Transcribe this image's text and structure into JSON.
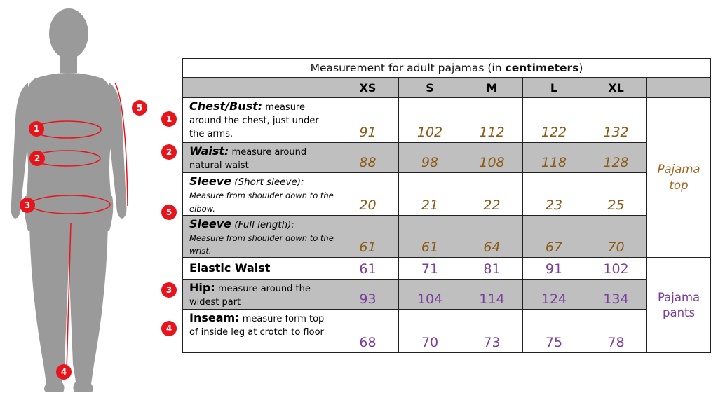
{
  "title": {
    "prefix": "Measurement for adult pajamas (in ",
    "bold": "centimeters",
    "suffix": ")"
  },
  "sizes": [
    "XS",
    "S",
    "M",
    "L",
    "XL"
  ],
  "colors": {
    "marker": "#e8141c",
    "top_values": "#8a5a16",
    "pants_values": "#7a3d9c",
    "shaded_row": "#bfbfbf",
    "silhouette": "#9a9a9a"
  },
  "markers": {
    "m1": "1",
    "m2": "2",
    "m3": "3",
    "m4": "4",
    "m5": "5"
  },
  "rows": {
    "chest": {
      "name": "Chest/Bust:",
      "desc": " measure around the chest, just under the arms.",
      "marker": "1",
      "values": [
        "91",
        "102",
        "112",
        "122",
        "132"
      ]
    },
    "waist": {
      "name": "Waist:",
      "desc": " measure around natural waist",
      "marker": "2",
      "values": [
        "88",
        "98",
        "108",
        "118",
        "128"
      ]
    },
    "sleeve_short": {
      "name": "Sleeve",
      "sub": " (Short sleeve):",
      "desc": "Measure from shoulder down to the elbow.",
      "values": [
        "20",
        "21",
        "22",
        "23",
        "25"
      ]
    },
    "sleeve_full": {
      "name": "Sleeve",
      "sub": " (Full length):",
      "desc": "Measure from shoulder down to the wrist.",
      "values": [
        "61",
        "61",
        "64",
        "67",
        "70"
      ]
    },
    "sleeve_marker": "5",
    "elastic": {
      "name": "Elastic Waist",
      "values": [
        "61",
        "71",
        "81",
        "91",
        "102"
      ]
    },
    "hip": {
      "name": "Hip:",
      "desc": " measure around the widest part",
      "marker": "3",
      "values": [
        "93",
        "104",
        "114",
        "124",
        "134"
      ]
    },
    "inseam": {
      "name": "Inseam:",
      "desc": " measure form top of inside leg at crotch to floor",
      "marker": "4",
      "values": [
        "68",
        "70",
        "73",
        "75",
        "78"
      ]
    }
  },
  "groups": {
    "top_line1": "Pajama",
    "top_line2": "top",
    "pants_line1": "Pajama",
    "pants_line2": "pants"
  }
}
